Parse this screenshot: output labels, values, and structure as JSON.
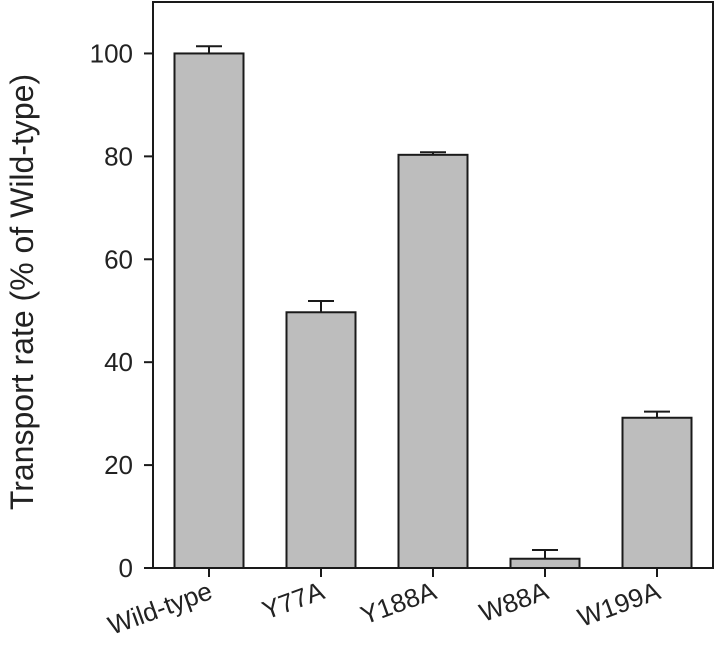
{
  "chart_data": {
    "type": "bar",
    "title": "",
    "xlabel": "",
    "ylabel": "Transport rate (% of Wild-type)",
    "categories": [
      "Wild-type",
      "Y77A",
      "Y188A",
      "W88A",
      "W199A"
    ],
    "values": [
      100,
      49.7,
      80.3,
      1.8,
      29.2
    ],
    "errors": [
      1.4,
      2.2,
      0.5,
      1.7,
      1.2
    ],
    "ylim": [
      0,
      110
    ],
    "yticks": [
      0,
      20,
      40,
      60,
      80,
      100
    ],
    "grid": false,
    "legend": "none",
    "colors": {
      "bar": "#bdbdbd",
      "stroke": "#1a1a1a"
    }
  }
}
